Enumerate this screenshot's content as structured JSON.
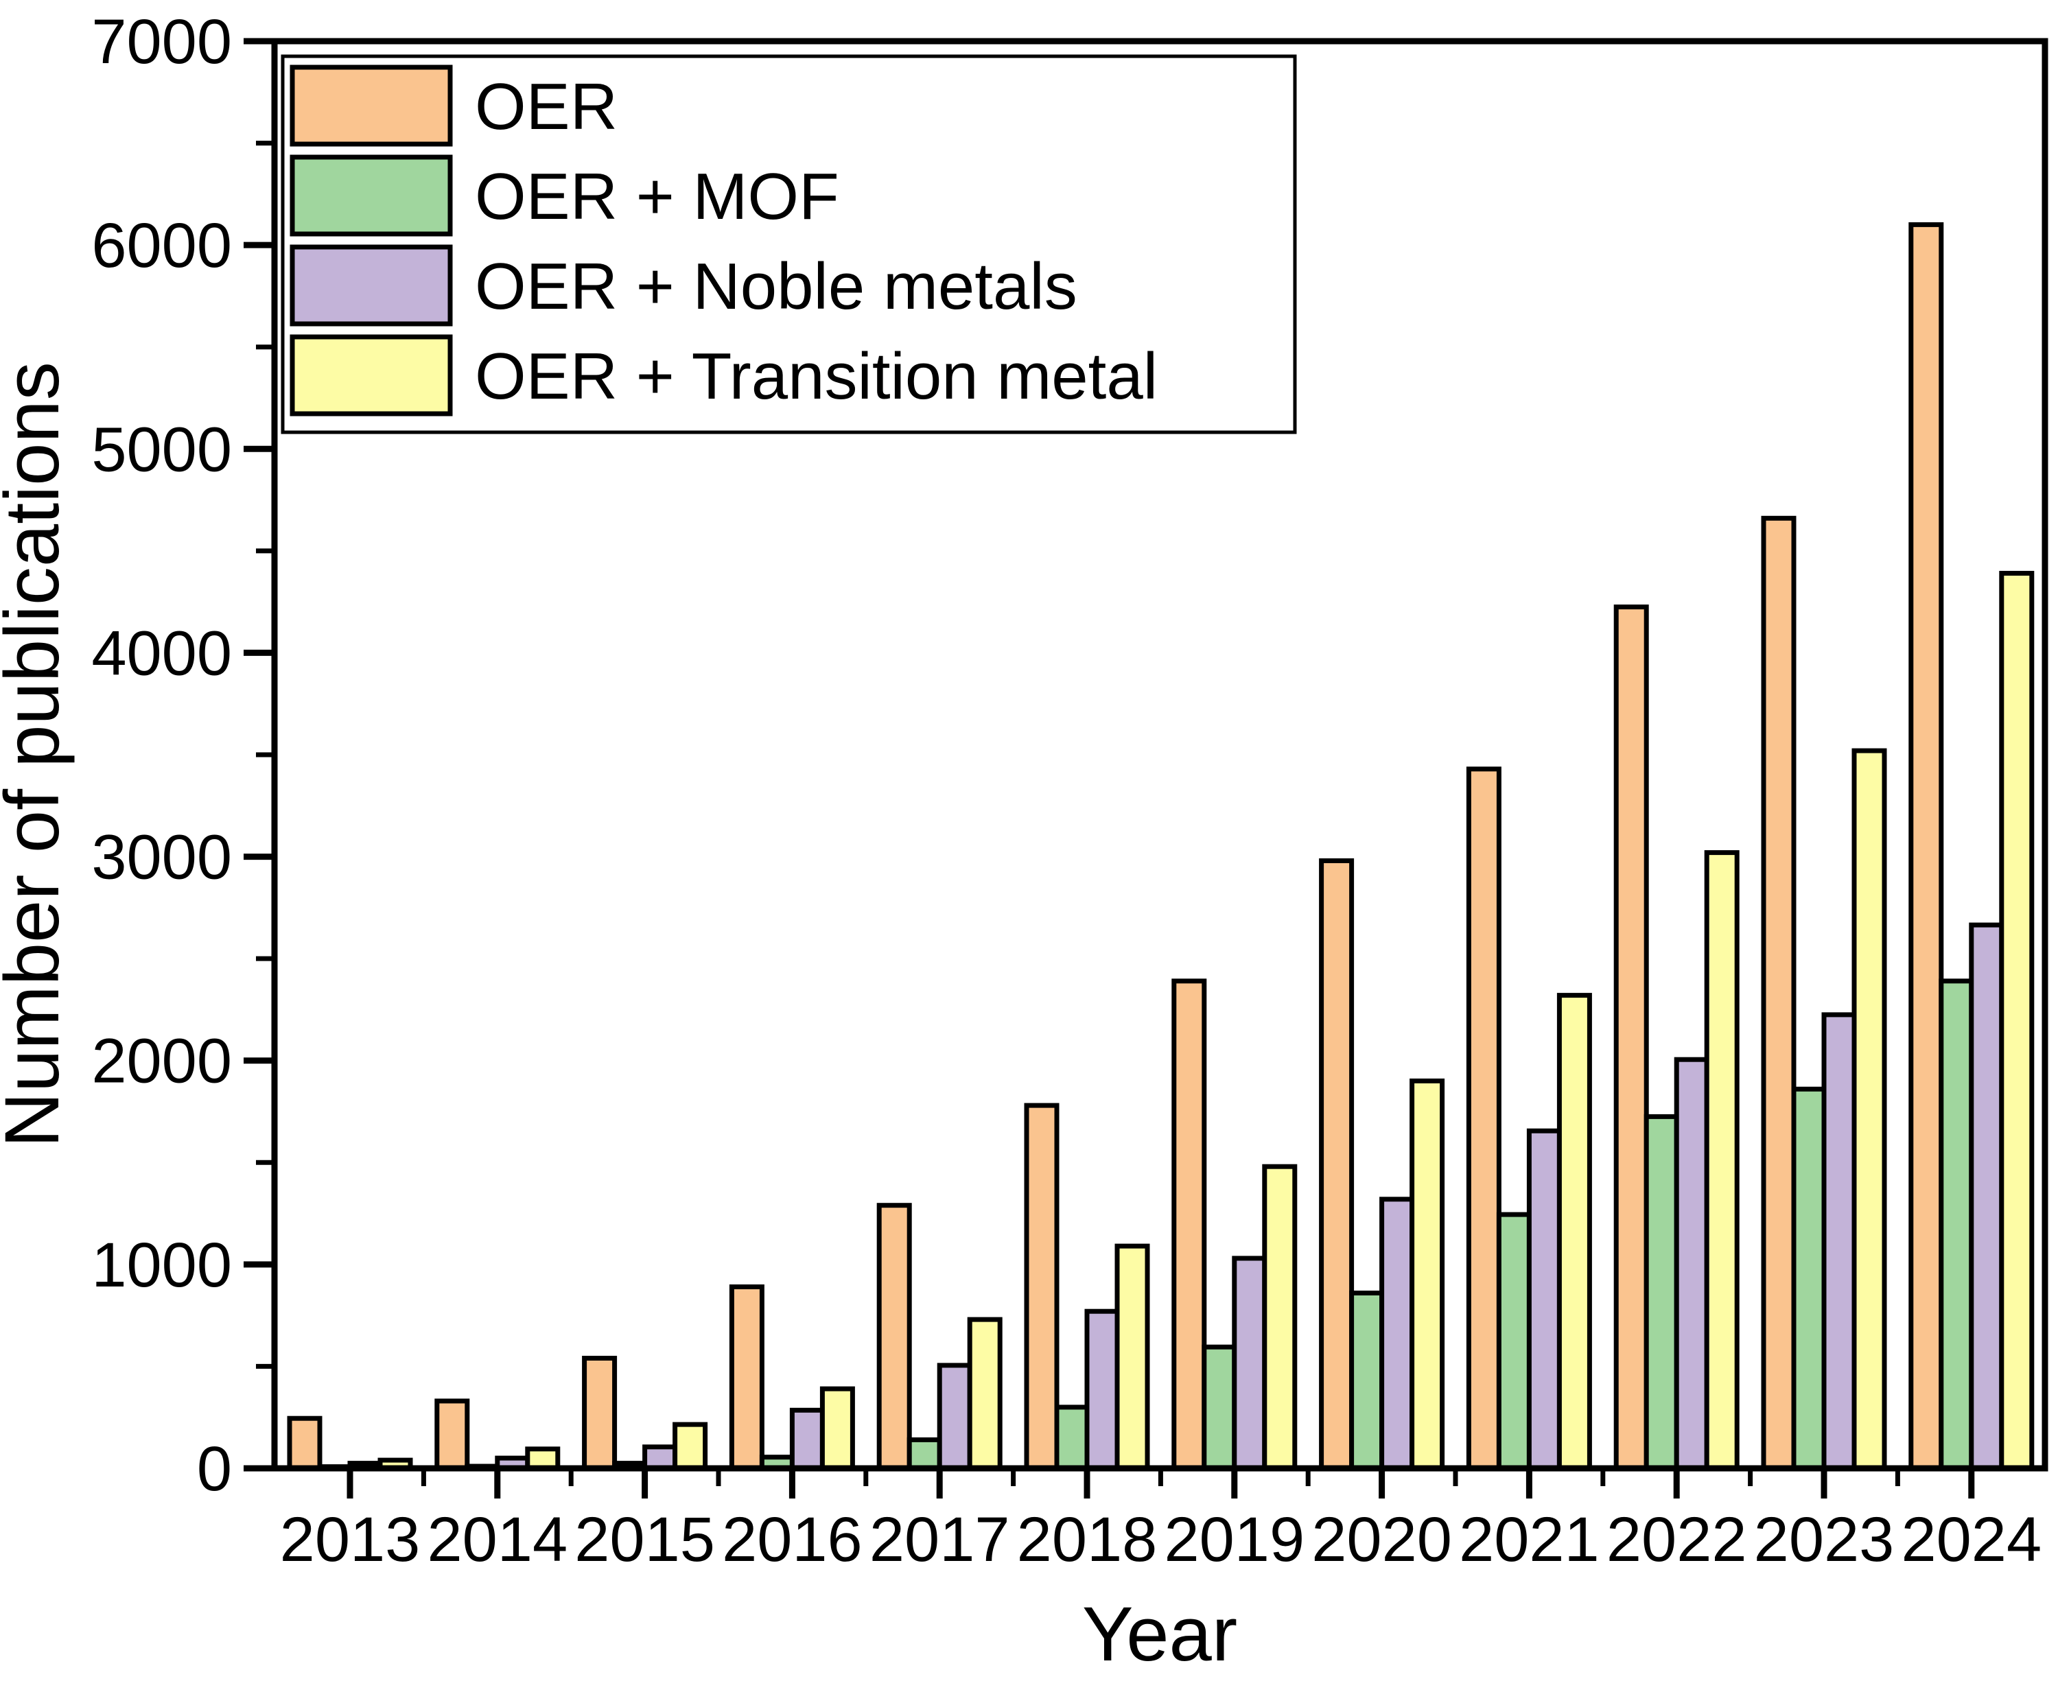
{
  "chart_data": {
    "type": "bar",
    "title": "",
    "xlabel": "Year",
    "ylabel": "Number of publications",
    "ylim": [
      0,
      7000
    ],
    "y_major_step": 1000,
    "y_minor_step": 500,
    "grid": false,
    "legend_position": "top-left-inside",
    "categories": [
      "2013",
      "2014",
      "2015",
      "2016",
      "2017",
      "2018",
      "2019",
      "2020",
      "2021",
      "2022",
      "2023",
      "2024"
    ],
    "series": [
      {
        "name": "OER",
        "color": "#FAC48F",
        "values": [
          245,
          330,
          540,
          890,
          1290,
          1780,
          2390,
          2980,
          3430,
          4225,
          4660,
          6100
        ]
      },
      {
        "name": "OER + MOF",
        "color": "#A0D69E",
        "values": [
          8,
          10,
          25,
          55,
          140,
          300,
          595,
          860,
          1245,
          1725,
          1860,
          2390
        ]
      },
      {
        "name": "OER + Noble metals",
        "color": "#C3B3D8",
        "values": [
          25,
          50,
          105,
          285,
          505,
          770,
          1030,
          1320,
          1655,
          2005,
          2225,
          2665
        ]
      },
      {
        "name": "OER + Transition metal",
        "color": "#FDFCA5",
        "values": [
          40,
          95,
          215,
          390,
          730,
          1090,
          1480,
          1900,
          2320,
          3020,
          3520,
          4390
        ]
      }
    ],
    "y_tick_labels": [
      "0",
      "1000",
      "2000",
      "3000",
      "4000",
      "5000",
      "6000",
      "7000"
    ],
    "bar_border_color": "#000000",
    "axis_color": "#000000",
    "background_color": "#FFFFFF"
  }
}
